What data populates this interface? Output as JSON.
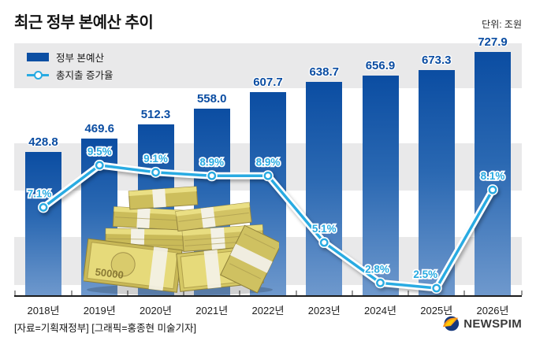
{
  "header": {
    "title": "최근 정부 본예산 추이",
    "unit_label": "단위: 조원"
  },
  "legend": {
    "items": [
      {
        "label": "정부 본예산",
        "type": "bar",
        "color": "#0c4fa3"
      },
      {
        "label": "총지출 증가율",
        "type": "line",
        "color": "#29abe2"
      }
    ]
  },
  "chart_data": {
    "type": "bar+line",
    "title": "최근 정부 본예산 추이",
    "unit": "조원",
    "categories": [
      "2018년",
      "2019년",
      "2020년",
      "2021년",
      "2022년",
      "2023년",
      "2024년",
      "2025년",
      "2026년"
    ],
    "series": [
      {
        "name": "정부 본예산",
        "type": "bar",
        "unit": "조원",
        "color_top": "#0b4da2",
        "color_bottom": "#6f99cd",
        "values": [
          428.8,
          469.6,
          512.3,
          558.0,
          607.7,
          638.7,
          656.9,
          673.3,
          727.9
        ],
        "value_labels": [
          "428.8",
          "469.6",
          "512.3",
          "558.0",
          "607.7",
          "638.7",
          "656.9",
          "673.3",
          "727.9"
        ]
      },
      {
        "name": "총지출 증가율",
        "type": "line",
        "unit": "%",
        "color": "#29abe2",
        "values": [
          7.1,
          9.5,
          9.1,
          8.9,
          8.9,
          5.1,
          2.8,
          2.5,
          8.1
        ],
        "value_labels": [
          "7.1%",
          "9.5%",
          "9.1%",
          "8.9%",
          "8.9%",
          "5.1%",
          "2.8%",
          "2.5%",
          "8.1%"
        ]
      }
    ],
    "ylim_bar": [
      0,
      760
    ],
    "legend_position": "top-left",
    "grid": "horizontal-bands"
  },
  "decor": {
    "money_label": "50000"
  },
  "footer": {
    "source": "[자료=기획재정부] [그래픽=홍종현 미술기자]",
    "logo_text": "NEWSPIM"
  }
}
